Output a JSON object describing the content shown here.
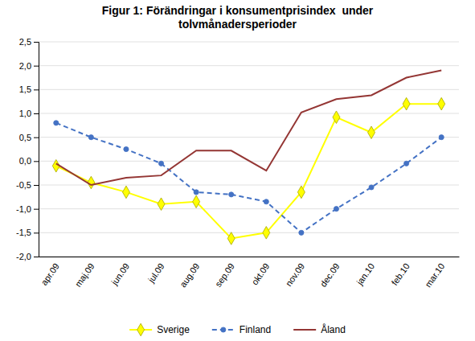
{
  "chart_data": {
    "type": "line",
    "title": "Figur 1: Förändringar i konsumentprisindex  under\ntolvmånadersperioder",
    "categories": [
      "apr.09",
      "maj.09",
      "jun.09",
      "jul.09",
      "aug.09",
      "sep.09",
      "okt.09",
      "nov.09",
      "dec.09",
      "jan.10",
      "feb.10",
      "mar.10"
    ],
    "series": [
      {
        "name": "Sverige",
        "color": "#FFFF00",
        "marker": "diamond",
        "line_style": "solid",
        "values": [
          -0.1,
          -0.45,
          -0.65,
          -0.9,
          -0.85,
          -1.62,
          -1.5,
          -0.65,
          0.92,
          0.6,
          1.2,
          1.2
        ]
      },
      {
        "name": "Finland",
        "color": "#4472C4",
        "marker": "circle",
        "line_style": "dashed",
        "values": [
          0.8,
          0.5,
          0.25,
          -0.05,
          -0.65,
          -0.7,
          -0.85,
          -1.5,
          -1.0,
          -0.55,
          -0.05,
          0.5
        ]
      },
      {
        "name": "Åland",
        "color": "#943634",
        "marker": "none",
        "line_style": "solid",
        "values": [
          -0.05,
          -0.5,
          -0.35,
          -0.3,
          0.22,
          0.22,
          -0.2,
          1.02,
          1.3,
          1.38,
          1.75,
          1.9
        ]
      }
    ],
    "ylim": [
      -2.0,
      2.5
    ],
    "yticks": [
      {
        "value": -2.0,
        "label": "-2,0"
      },
      {
        "value": -1.5,
        "label": "-1,5"
      },
      {
        "value": -1.0,
        "label": "-1,0"
      },
      {
        "value": -0.5,
        "label": "-0,5"
      },
      {
        "value": 0.0,
        "label": "0,0"
      },
      {
        "value": 0.5,
        "label": "0,5"
      },
      {
        "value": 1.0,
        "label": "1,0"
      },
      {
        "value": 1.5,
        "label": "1,5"
      },
      {
        "value": 2.0,
        "label": "2,0"
      },
      {
        "value": 2.5,
        "label": "2,5"
      }
    ],
    "grid": true,
    "legend": "bottom"
  }
}
